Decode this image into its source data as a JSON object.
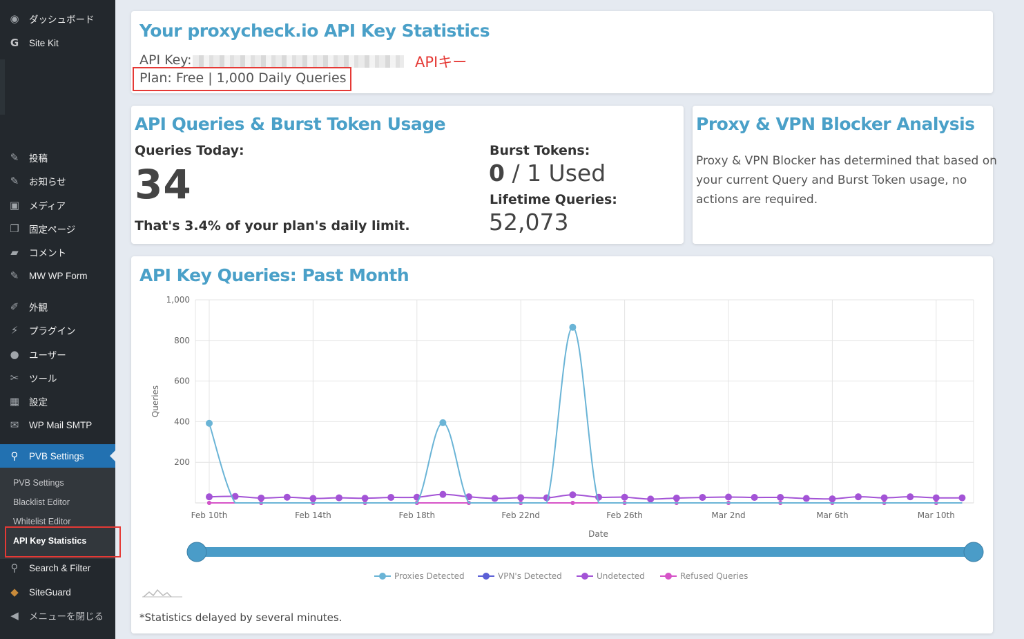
{
  "sidebar": {
    "items": [
      {
        "label": "ダッシュボード",
        "icon": "dashboard-icon"
      },
      {
        "label": "Site Kit",
        "icon": "google-g-icon"
      },
      {
        "label": "投稿",
        "icon": "pin-icon"
      },
      {
        "label": "お知らせ",
        "icon": "pin-icon"
      },
      {
        "label": "メディア",
        "icon": "media-icon"
      },
      {
        "label": "固定ページ",
        "icon": "pages-icon"
      },
      {
        "label": "コメント",
        "icon": "comment-icon"
      },
      {
        "label": "MW WP Form",
        "icon": "pin-icon"
      },
      {
        "label": "外観",
        "icon": "brush-icon"
      },
      {
        "label": "プラグイン",
        "icon": "plugin-icon"
      },
      {
        "label": "ユーザー",
        "icon": "user-icon"
      },
      {
        "label": "ツール",
        "icon": "wrench-icon"
      },
      {
        "label": "設定",
        "icon": "settings-icon"
      },
      {
        "label": "WP Mail SMTP",
        "icon": "mail-icon"
      },
      {
        "label": "PVB Settings",
        "icon": "shield-icon"
      },
      {
        "label": "Search & Filter",
        "icon": "search-icon"
      },
      {
        "label": "SiteGuard",
        "icon": "siteguard-icon"
      },
      {
        "label": "メニューを閉じる",
        "icon": "collapse-icon"
      }
    ],
    "submenu": [
      "PVB Settings",
      "Blacklist Editor",
      "Whitelist Editor",
      "API Key Statistics"
    ]
  },
  "header_card": {
    "title": "Your proxycheck.io API Key Statistics",
    "api_key_label": "API Key:",
    "annotation": "APIキー",
    "plan": "Plan: Free | 1,000 Daily Queries"
  },
  "usage_card": {
    "title": "API Queries & Burst Token Usage",
    "queries_today_label": "Queries Today:",
    "queries_today_value": "34",
    "percent_text": "That's 3.4% of your plan's daily limit.",
    "burst_label": "Burst Tokens:",
    "burst_used": "0",
    "burst_rest": " / 1 Used",
    "lifetime_label": "Lifetime Queries:",
    "lifetime_value": "52,073"
  },
  "analysis_card": {
    "title": "Proxy & VPN Blocker Analysis",
    "line1": "Proxy & VPN Blocker has determined that based on",
    "line2": "your current Query and Burst Token usage, no",
    "line3": "actions are required."
  },
  "chart_card": {
    "title": "API Key Queries: Past Month",
    "footnote": "*Statistics delayed by several minutes."
  },
  "chart_data": {
    "type": "line",
    "xlabel": "Date",
    "ylabel": "Queries",
    "ylim": [
      0,
      1000
    ],
    "yticks": [
      "200",
      "400",
      "600",
      "800",
      "1,000"
    ],
    "x_tick_labels": [
      "Feb 10th",
      "Feb 14th",
      "Feb 18th",
      "Feb 22nd",
      "Feb 26th",
      "Mar 2nd",
      "Mar 6th",
      "Mar 10th"
    ],
    "x": [
      "Feb 10th",
      "Feb 11th",
      "Feb 12th",
      "Feb 13th",
      "Feb 14th",
      "Feb 15th",
      "Feb 16th",
      "Feb 17th",
      "Feb 18th",
      "Feb 19th",
      "Feb 20th",
      "Feb 21st",
      "Feb 22nd",
      "Feb 23rd",
      "Feb 24th",
      "Feb 25th",
      "Feb 26th",
      "Feb 27th",
      "Feb 28th",
      "Mar 1st",
      "Mar 2nd",
      "Mar 3rd",
      "Mar 4th",
      "Mar 5th",
      "Mar 6th",
      "Mar 7th",
      "Mar 8th",
      "Mar 9th",
      "Mar 10th",
      "Mar 11th"
    ],
    "legend_position": "bottom",
    "grid": true,
    "series": [
      {
        "name": "Proxies Detected",
        "color": "#6ab4d6",
        "values": [
          392,
          0,
          0,
          0,
          0,
          0,
          0,
          0,
          0,
          395,
          0,
          0,
          0,
          0,
          865,
          0,
          0,
          0,
          0,
          0,
          0,
          0,
          0,
          0,
          0,
          0,
          0,
          0,
          0,
          0
        ]
      },
      {
        "name": "VPN's Detected",
        "color": "#5b5fd6",
        "values": [
          0,
          0,
          0,
          0,
          0,
          0,
          0,
          0,
          0,
          0,
          0,
          0,
          0,
          0,
          0,
          0,
          0,
          0,
          0,
          0,
          0,
          0,
          0,
          0,
          0,
          0,
          0,
          0,
          0,
          0
        ]
      },
      {
        "name": "Undetected",
        "color": "#a353d6",
        "values": [
          30,
          32,
          24,
          28,
          22,
          25,
          23,
          27,
          28,
          42,
          30,
          22,
          26,
          25,
          40,
          28,
          28,
          19,
          24,
          27,
          29,
          27,
          27,
          22,
          20,
          30,
          25,
          30,
          25,
          25
        ]
      },
      {
        "name": "Refused Queries",
        "color": "#d653c8",
        "values": [
          0,
          0,
          0,
          0,
          0,
          0,
          0,
          0,
          0,
          0,
          0,
          0,
          0,
          0,
          0,
          0,
          0,
          0,
          0,
          0,
          0,
          0,
          0,
          0,
          0,
          0,
          0,
          0,
          0,
          0
        ]
      }
    ]
  }
}
